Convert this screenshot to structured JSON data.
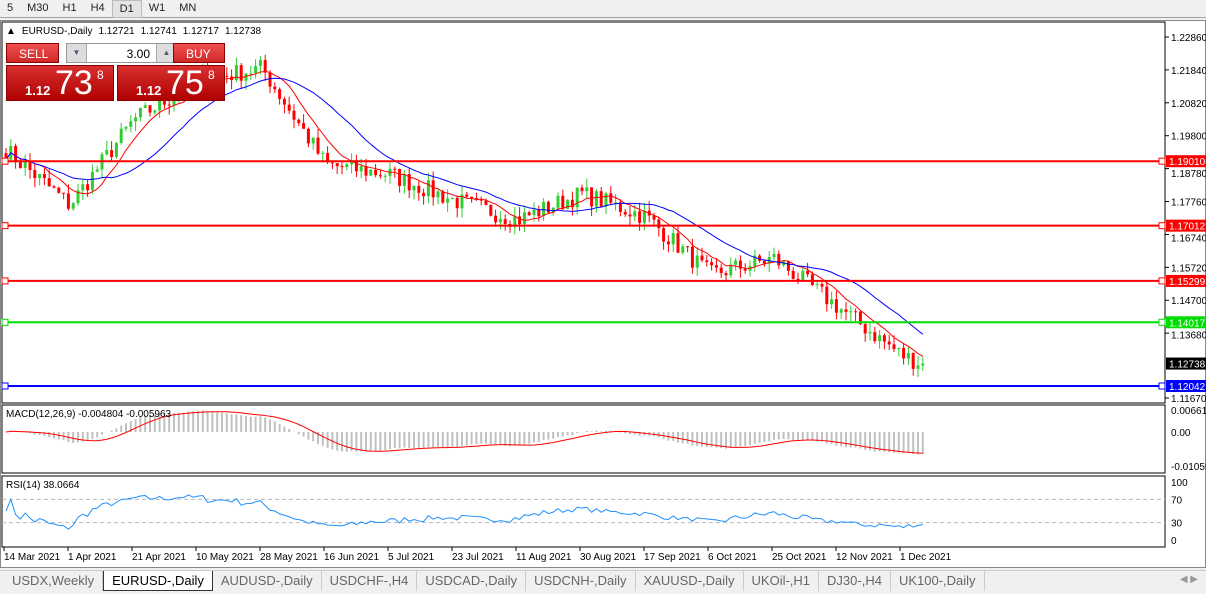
{
  "toolbar": {
    "timeframes": [
      "5",
      "M30",
      "H1",
      "H4",
      "D1",
      "W1",
      "MN"
    ],
    "active": "D1"
  },
  "chart": {
    "symbol_label": "EURUSD-,Daily",
    "ohlc": [
      "1.12721",
      "1.12741",
      "1.12717",
      "1.12738"
    ],
    "current_price": "1.12738"
  },
  "trade": {
    "sell_label": "SELL",
    "buy_label": "BUY",
    "lot": "3.00",
    "sell_big": "1.12",
    "sell_pips": "73",
    "sell_frac": "8",
    "buy_big": "1.12",
    "buy_pips": "75",
    "buy_frac": "8"
  },
  "price_axis": [
    "1.22860",
    "1.21840",
    "1.20820",
    "1.19800",
    "1.18780",
    "1.17760",
    "1.16740",
    "1.15720",
    "1.14700",
    "1.13680",
    "1.11670"
  ],
  "levels": [
    {
      "price": "1.19010",
      "color": "#ff0000"
    },
    {
      "price": "1.17012",
      "color": "#ff0000"
    },
    {
      "price": "1.15299",
      "color": "#ff0000"
    },
    {
      "price": "1.14017",
      "color": "#00dd00"
    },
    {
      "price": "1.12042",
      "color": "#0000ff"
    }
  ],
  "macd": {
    "label": "MACD(12,26,9) -0.004804 -0.005963",
    "axis": [
      "0.006611",
      "0.00",
      "-0.01059"
    ]
  },
  "rsi": {
    "label": "RSI(14) 38.0664",
    "axis": [
      "100",
      "70",
      "30",
      "0"
    ]
  },
  "dates": [
    "14 Mar 2021",
    "1 Apr 2021",
    "21 Apr 2021",
    "10 May 2021",
    "28 May 2021",
    "16 Jun 2021",
    "5 Jul 2021",
    "23 Jul 2021",
    "11 Aug 2021",
    "30 Aug 2021",
    "17 Sep 2021",
    "6 Oct 2021",
    "25 Oct 2021",
    "12 Nov 2021",
    "1 Dec 2021"
  ],
  "tabs": [
    "USDX,Weekly",
    "EURUSD-,Daily",
    "AUDUSD-,Daily",
    "USDCHF-,H4",
    "USDCAD-,Daily",
    "USDCNH-,Daily",
    "XAUUSD-,Daily",
    "UKOil-,H1",
    "DJ30-,H4",
    "UK100-,Daily"
  ],
  "active_tab": "EURUSD-,Daily",
  "colors": {
    "bull": "#32cd32",
    "bear": "#ff0000",
    "ma_fast": "#ff0000",
    "ma_slow": "#0000ff",
    "macd_hist": "#c0c0c0",
    "rsi": "#1e90ff"
  },
  "chart_data": {
    "type": "candlestick",
    "x": [
      "14 Mar 2021",
      "1 Apr 2021",
      "21 Apr 2021",
      "10 May 2021",
      "28 May 2021",
      "16 Jun 2021",
      "5 Jul 2021",
      "23 Jul 2021",
      "11 Aug 2021",
      "30 Aug 2021",
      "17 Sep 2021",
      "6 Oct 2021",
      "25 Oct 2021",
      "12 Nov 2021",
      "1 Dec 2021"
    ],
    "approx_close": [
      1.1936,
      1.1765,
      1.2029,
      1.215,
      1.219,
      1.189,
      1.186,
      1.178,
      1.172,
      1.18,
      1.173,
      1.155,
      1.16,
      1.145,
      1.13
    ],
    "last_close": 1.12738,
    "ylim": [
      1.1167,
      1.2286
    ]
  }
}
